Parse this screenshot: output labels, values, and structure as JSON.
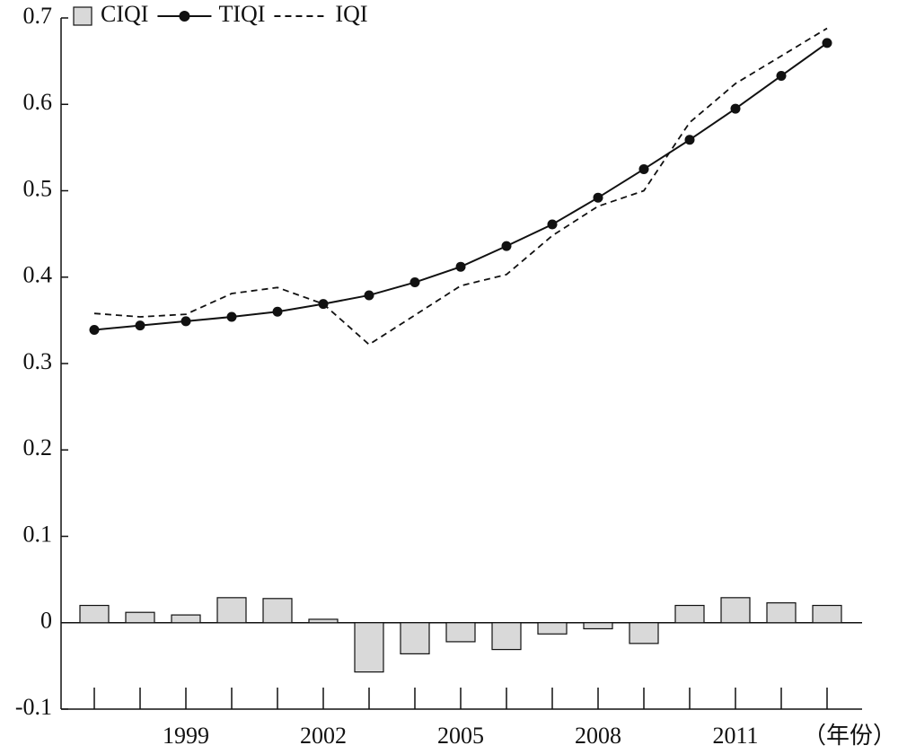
{
  "chart_data": {
    "type": "bar-line",
    "categories": [
      null,
      null,
      "1999",
      null,
      null,
      "2002",
      null,
      null,
      "2005",
      null,
      null,
      "2008",
      null,
      null,
      "2011",
      null,
      null
    ],
    "x_label": "（年份）",
    "series": [
      {
        "name": "CIQI",
        "type": "bar",
        "color": "#d9d9d9",
        "values": [
          0.02,
          0.012,
          0.009,
          0.029,
          0.028,
          0.004,
          -0.057,
          -0.036,
          -0.022,
          -0.031,
          -0.013,
          -0.007,
          -0.024,
          0.02,
          0.029,
          0.023,
          0.02
        ]
      },
      {
        "name": "TIQI",
        "type": "line",
        "color": "#111111",
        "marker": true,
        "values": [
          0.339,
          0.344,
          0.349,
          0.354,
          0.36,
          0.369,
          0.379,
          0.394,
          0.412,
          0.436,
          0.461,
          0.492,
          0.525,
          0.559,
          0.595,
          0.633,
          0.671
        ]
      },
      {
        "name": "IQI",
        "type": "line",
        "color": "#111111",
        "dashed": true,
        "values": [
          0.358,
          0.354,
          0.357,
          0.381,
          0.388,
          0.369,
          0.322,
          0.356,
          0.39,
          0.403,
          0.448,
          0.482,
          0.5,
          0.579,
          0.624,
          0.656,
          0.688
        ]
      }
    ],
    "ylim": [
      -0.1,
      0.7
    ],
    "yticks": [
      -0.1,
      0,
      0.1,
      0.2,
      0.3,
      0.4,
      0.5,
      0.6,
      0.7
    ],
    "legend": "top-left"
  }
}
